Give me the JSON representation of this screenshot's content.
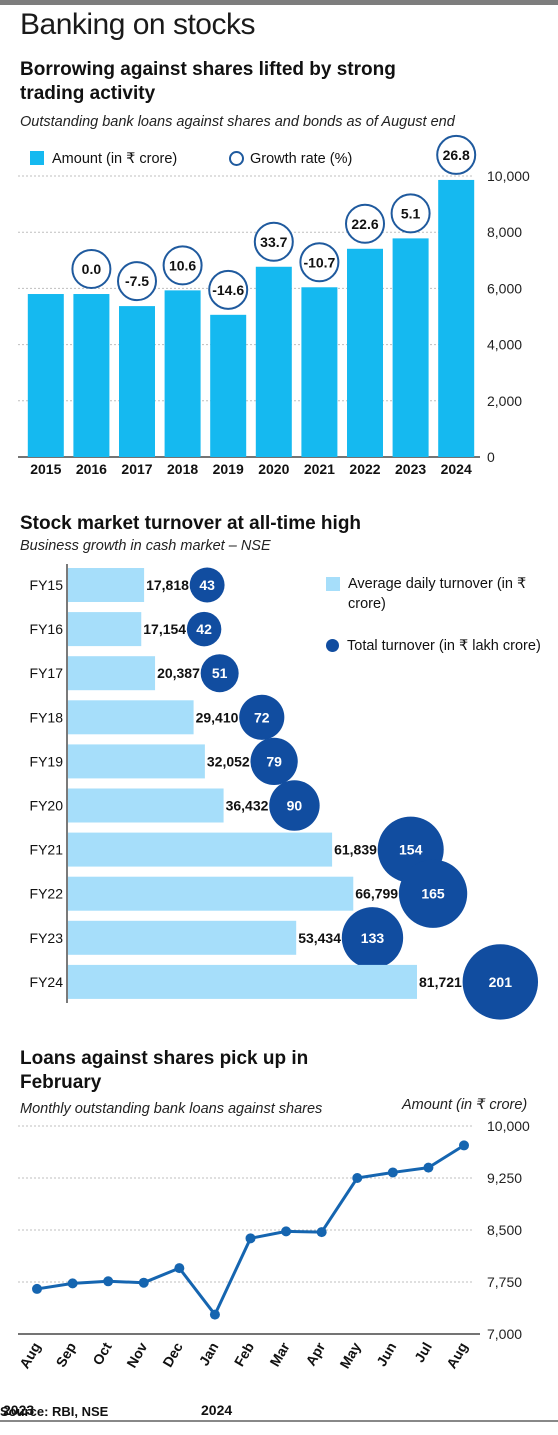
{
  "page": {
    "title": "Banking on stocks",
    "source": "Source: RBI, NSE",
    "colors": {
      "bar_blue": "#15b9f0",
      "bar_light": "#a6defa",
      "dot_blue": "#114da0",
      "line_blue": "#1565b0",
      "ring": "#1f5a9e"
    }
  },
  "section1": {
    "title": "Borrowing against shares lifted by strong trading activity",
    "note": "Outstanding bank loans against shares and bonds as of August end",
    "legend_amount": "Amount (in ₹ crore)",
    "legend_growth": "Growth rate (%)"
  },
  "section2": {
    "title": "Stock market turnover at all-time high",
    "note": "Business growth in cash market – NSE",
    "legend_avg": "Average daily turnover (in ₹ crore)",
    "legend_total": "Total turnover (in ₹ lakh crore)"
  },
  "section3": {
    "title": "Loans against shares pick up in February",
    "note": "Monthly outstanding bank loans against shares",
    "amount_label": "Amount (in ₹ crore)"
  },
  "chart_data": [
    {
      "type": "bar",
      "categories": [
        "2015",
        "2016",
        "2017",
        "2018",
        "2019",
        "2020",
        "2021",
        "2022",
        "2023",
        "2024"
      ],
      "series": [
        {
          "name": "Amount (in ₹ crore)",
          "values": [
            5800,
            5800,
            5370,
            5930,
            5060,
            6770,
            6040,
            7410,
            7780,
            9860
          ]
        },
        {
          "name": "Growth rate (%)",
          "values": [
            null,
            0.0,
            -7.5,
            10.6,
            -14.6,
            33.7,
            -10.7,
            22.6,
            5.1,
            26.8
          ],
          "labels": [
            "",
            "0.0",
            "-7.5",
            "10.6",
            "-14.6",
            "33.7",
            "-10.7",
            "22.6",
            "5.1",
            "26.8"
          ]
        }
      ],
      "ylim": [
        0,
        10000
      ],
      "yticks": [
        "0",
        "2,000",
        "4,000",
        "6,000",
        "8,000",
        "10,000"
      ],
      "ytick_values": [
        0,
        2000,
        4000,
        6000,
        8000,
        10000
      ],
      "grid": true,
      "legend": "top-left"
    },
    {
      "type": "bar",
      "orientation": "horizontal",
      "categories": [
        "FY15",
        "FY16",
        "FY17",
        "FY18",
        "FY19",
        "FY20",
        "FY21",
        "FY22",
        "FY23",
        "FY24"
      ],
      "series": [
        {
          "name": "Average daily turnover (in ₹ crore)",
          "values": [
            17818,
            17154,
            20387,
            29410,
            32052,
            36432,
            61839,
            66799,
            53434,
            81721
          ],
          "labels": [
            "17,818",
            "17,154",
            "20,387",
            "29,410",
            "32,052",
            "36,432",
            "61,839",
            "66,799",
            "53,434",
            "81,721"
          ]
        },
        {
          "name": "Total turnover (in ₹ lakh crore)",
          "values": [
            43,
            42,
            51,
            72,
            79,
            90,
            154,
            165,
            133,
            201
          ],
          "labels": [
            "43",
            "42",
            "51",
            "72",
            "79",
            "90",
            "154",
            "165",
            "133",
            "201"
          ]
        }
      ],
      "legend": "right"
    },
    {
      "type": "line",
      "x": [
        "Aug",
        "Sep",
        "Oct",
        "Nov",
        "Dec",
        "Jan",
        "Feb",
        "Mar",
        "Apr",
        "May",
        "Jun",
        "Jul",
        "Aug"
      ],
      "x_year_labels": [
        "2023",
        "2024"
      ],
      "series": [
        {
          "values": [
            7650,
            7730,
            7760,
            7740,
            7950,
            7280,
            8380,
            8480,
            8470,
            9250,
            9330,
            9400,
            9720
          ]
        }
      ],
      "ylabel": "Amount (in ₹ crore)",
      "ylim": [
        7000,
        10000
      ],
      "yticks": [
        "7,000",
        "7,750",
        "8,500",
        "9,250",
        "10,000"
      ],
      "ytick_values": [
        7000,
        7750,
        8500,
        9250,
        10000
      ],
      "grid": true
    }
  ]
}
